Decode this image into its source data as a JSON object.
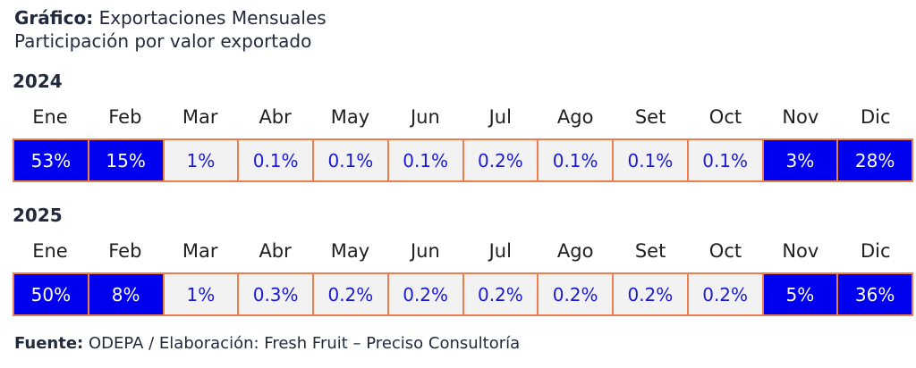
{
  "header": {
    "title_prefix": "Gráfico:",
    "title_text": "Exportaciones Mensuales",
    "subtitle": "Participación por valor exportado"
  },
  "footer": {
    "source_prefix": "Fuente:",
    "source_text": "ODEPA / Elaboración: Fresh Fruit – Preciso Consultoría"
  },
  "colors": {
    "high_fill": "#0000ee",
    "low_fill": "#f2f2f2",
    "high_text": "#ffffff",
    "low_text": "#1a1ad6",
    "grid_line": "#f07e4c"
  },
  "chart_data": {
    "type": "heatmap",
    "title": "Exportaciones Mensuales",
    "subtitle": "Participación por valor exportado",
    "categories": [
      "Ene",
      "Feb",
      "Mar",
      "Abr",
      "May",
      "Jun",
      "Jul",
      "Ago",
      "Set",
      "Oct",
      "Nov",
      "Dic"
    ],
    "series": [
      {
        "name": "2024",
        "labels": [
          "53%",
          "15%",
          "1%",
          "0.1%",
          "0.1%",
          "0.1%",
          "0.2%",
          "0.1%",
          "0.1%",
          "0.1%",
          "3%",
          "28%"
        ],
        "values": [
          53,
          15,
          1,
          0.1,
          0.1,
          0.1,
          0.2,
          0.1,
          0.1,
          0.1,
          3,
          28
        ],
        "highlighted": [
          true,
          true,
          false,
          false,
          false,
          false,
          false,
          false,
          false,
          false,
          true,
          true
        ]
      },
      {
        "name": "2025",
        "labels": [
          "50%",
          "8%",
          "1%",
          "0.3%",
          "0.2%",
          "0.2%",
          "0.2%",
          "0.2%",
          "0.2%",
          "0.2%",
          "5%",
          "36%"
        ],
        "values": [
          50,
          8,
          1,
          0.3,
          0.2,
          0.2,
          0.2,
          0.2,
          0.2,
          0.2,
          5,
          36
        ],
        "highlighted": [
          true,
          true,
          false,
          false,
          false,
          false,
          false,
          false,
          false,
          false,
          true,
          true
        ]
      }
    ]
  }
}
